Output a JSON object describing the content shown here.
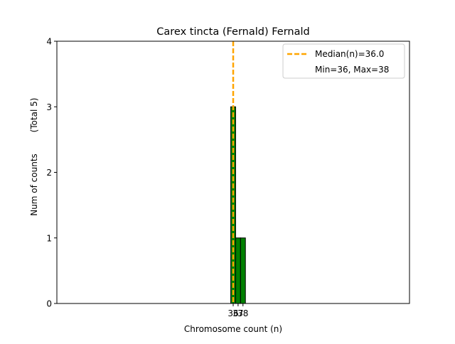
{
  "chart_data": {
    "type": "bar",
    "title": "Carex tincta (Fernald) Fernald",
    "xlabel": "Chromosome count (n)",
    "ylabel": "Num of counts",
    "ylabel_note": "(Total 5)",
    "x": [
      36,
      37,
      38
    ],
    "x_tick_labels": [
      "36",
      "37",
      "38"
    ],
    "values": [
      3,
      1,
      1
    ],
    "bar_color": "#008000",
    "bar_edge_color": "#000000",
    "ylim": [
      0,
      4
    ],
    "y_ticks": [
      0,
      1,
      2,
      3,
      4
    ],
    "xlim": [
      0,
      72
    ],
    "grid": false,
    "median": {
      "value": 36.0,
      "label": "Median(n)=36.0",
      "color": "#FFA500",
      "style": "dashed"
    },
    "legend": {
      "placement": "top-right",
      "entries": [
        "Median(n)=36.0",
        "Min=36, Max=38"
      ]
    }
  }
}
